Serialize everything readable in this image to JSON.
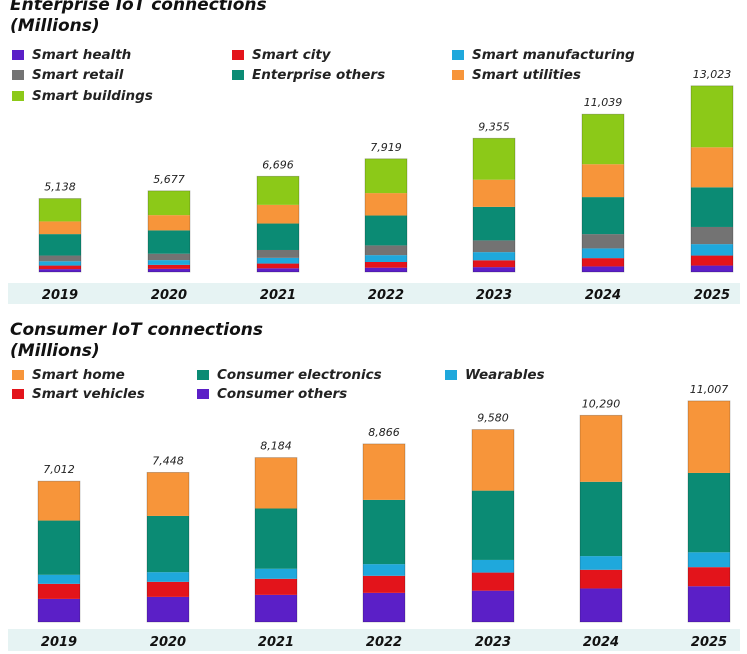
{
  "chart_data": [
    {
      "type": "bar",
      "stacked": true,
      "title": "Enterprise IoT connections",
      "subtitle": "(Millions)",
      "categories": [
        "2019",
        "2020",
        "2021",
        "2022",
        "2023",
        "2024",
        "2025"
      ],
      "totals": [
        "5,138",
        "5,677",
        "6,696",
        "7,919",
        "9,355",
        "11,039",
        "13,023"
      ],
      "ylim": [
        0,
        13500
      ],
      "series": [
        {
          "name": "Smart health",
          "color": "#5b1fc7",
          "values": [
            200,
            220,
            260,
            300,
            340,
            390,
            450
          ]
        },
        {
          "name": "Smart city",
          "color": "#e3141b",
          "values": [
            250,
            280,
            330,
            400,
            480,
            580,
            700
          ]
        },
        {
          "name": "Smart manufacturing",
          "color": "#1fa8dc",
          "values": [
            300,
            330,
            400,
            480,
            570,
            680,
            800
          ]
        },
        {
          "name": "Smart retail",
          "color": "#737373",
          "values": [
            400,
            450,
            550,
            680,
            820,
            1000,
            1200
          ]
        },
        {
          "name": "Enterprise others",
          "color": "#0b8b74",
          "values": [
            1500,
            1630,
            1850,
            2090,
            2345,
            2589,
            2773
          ]
        },
        {
          "name": "Smart utilities",
          "color": "#f7953a",
          "values": [
            888,
            1067,
            1306,
            1569,
            1900,
            2300,
            2800
          ]
        },
        {
          "name": "Smart buildings",
          "color": "#8cc918",
          "values": [
            1600,
            1700,
            2000,
            2400,
            2900,
            3500,
            4300
          ]
        }
      ],
      "legend_order": [
        "Smart health",
        "Smart city",
        "Smart manufacturing",
        "Smart retail",
        "Enterprise others",
        "Smart utilities",
        "Smart buildings"
      ]
    },
    {
      "type": "bar",
      "stacked": true,
      "title": "Consumer IoT connections",
      "subtitle": "(Millions)",
      "categories": [
        "2019",
        "2020",
        "2021",
        "2022",
        "2023",
        "2024",
        "2025"
      ],
      "totals": [
        "7,012",
        "7,448",
        "8,184",
        "8,866",
        "9,580",
        "10,290",
        "11,007"
      ],
      "ylim": [
        0,
        11500
      ],
      "series": [
        {
          "name": "Consumer others",
          "color": "#5b1fc7",
          "values": [
            1150,
            1250,
            1350,
            1450,
            1560,
            1670,
            1780
          ]
        },
        {
          "name": "Smart vehicles",
          "color": "#e3141b",
          "values": [
            750,
            750,
            800,
            850,
            900,
            930,
            950
          ]
        },
        {
          "name": "Wearables",
          "color": "#1fa8dc",
          "values": [
            450,
            480,
            500,
            580,
            630,
            680,
            740
          ]
        },
        {
          "name": "Consumer electronics",
          "color": "#0b8b74",
          "values": [
            2700,
            2800,
            3000,
            3200,
            3450,
            3700,
            3950
          ]
        },
        {
          "name": "Smart home",
          "color": "#f7953a",
          "values": [
            1962,
            2168,
            2534,
            2786,
            3040,
            3310,
            3587
          ]
        }
      ],
      "legend_order": [
        "Smart home",
        "Consumer electronics",
        "Wearables",
        "Smart vehicles",
        "Consumer others"
      ]
    }
  ]
}
